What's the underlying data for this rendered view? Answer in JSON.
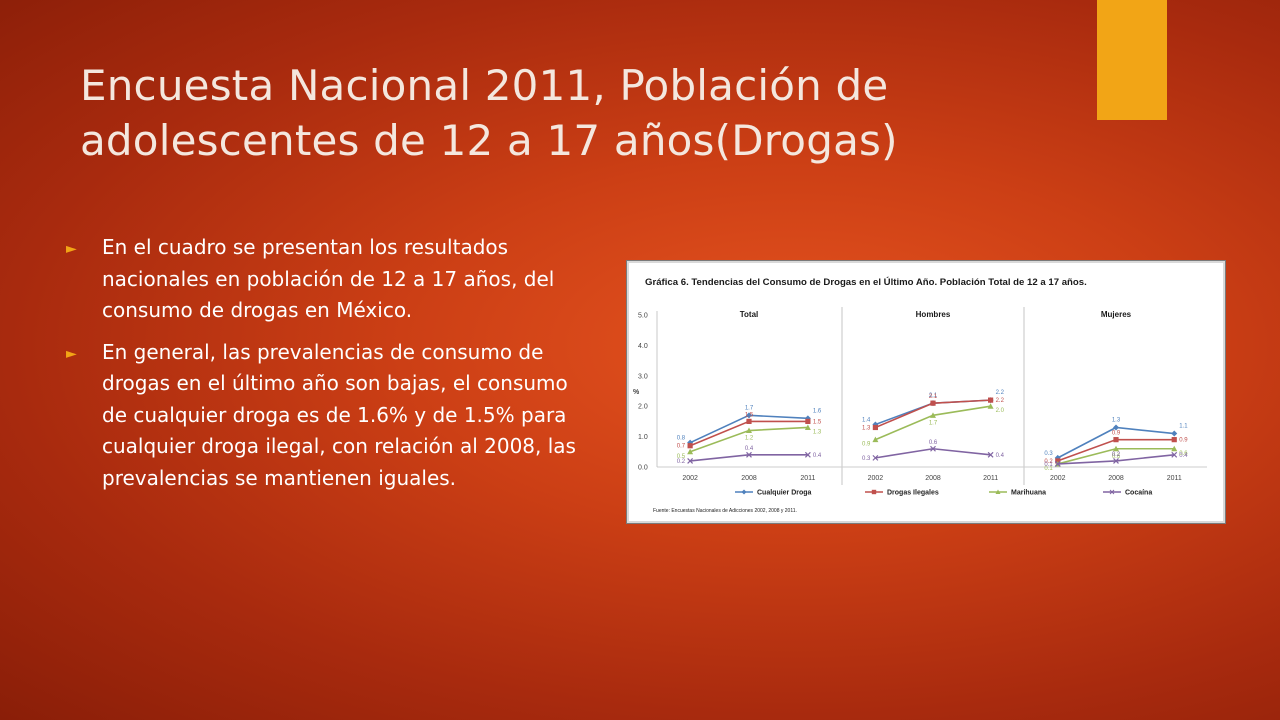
{
  "slide": {
    "title_line1": "Encuesta Nacional 2011, Población de",
    "title_line2": "adolescentes de 12 a 17 años(Drogas)",
    "bullets": [
      "En el cuadro se presentan los resultados nacionales en población de 12 a 17 años, del consumo de drogas en México.",
      "En general, las prevalencias de consumo de drogas en el último año son bajas, el consumo de cualquier droga es de 1.6% y de 1.5% para cualquier droga ilegal, con relación al 2008, las prevalencias se mantienen iguales."
    ],
    "accent_color": "#f2a516"
  },
  "chart_data": {
    "type": "line",
    "title": "Gráfica 6. Tendencias del Consumo de Drogas en el Último Año. Población Total de 12 a 17 años.",
    "ylabel": "%",
    "ylim": [
      0,
      5
    ],
    "yticks": [
      "0.0",
      "1.0",
      "2.0",
      "3.0",
      "4.0",
      "5.0"
    ],
    "categories": [
      "2002",
      "2008",
      "2011"
    ],
    "series_names": [
      "Cualquier Droga",
      "Drogas Ilegales",
      "Marihuana",
      "Cocaína"
    ],
    "series_colors": [
      "#4f81bd",
      "#c0504d",
      "#9bbb59",
      "#8064a2"
    ],
    "panels": [
      {
        "title": "Total",
        "series": [
          {
            "name": "Cualquier Droga",
            "values": [
              0.8,
              1.7,
              1.6
            ],
            "labels": [
              "0.8",
              "1.7",
              "1.6"
            ]
          },
          {
            "name": "Drogas Ilegales",
            "values": [
              0.7,
              1.5,
              1.5
            ],
            "labels": [
              "0.7",
              "1.5",
              "1.5"
            ]
          },
          {
            "name": "Marihuana",
            "values": [
              0.5,
              1.2,
              1.3
            ],
            "labels": [
              "0.5",
              "1.2",
              "1.3"
            ]
          },
          {
            "name": "Cocaína",
            "values": [
              0.2,
              0.4,
              0.4
            ],
            "labels": [
              "0.2",
              "0.4",
              "0.4"
            ]
          }
        ]
      },
      {
        "title": "Hombres",
        "series": [
          {
            "name": "Cualquier Droga",
            "values": [
              1.4,
              2.1,
              2.2
            ],
            "labels": [
              "1.4",
              "2.1",
              "2.2"
            ]
          },
          {
            "name": "Drogas Ilegales",
            "values": [
              1.3,
              2.1,
              2.2
            ],
            "labels": [
              "1.3",
              "2.1",
              "2.2"
            ]
          },
          {
            "name": "Marihuana",
            "values": [
              0.9,
              1.7,
              2.0
            ],
            "labels": [
              "0.9",
              "1.7",
              "2.0"
            ]
          },
          {
            "name": "Cocaína",
            "values": [
              0.3,
              0.6,
              0.4
            ],
            "labels": [
              "0.3",
              "0.6",
              "0.4"
            ]
          }
        ]
      },
      {
        "title": "Mujeres",
        "series": [
          {
            "name": "Cualquier Droga",
            "values": [
              0.3,
              1.3,
              1.1
            ],
            "labels": [
              "0.3",
              "1.3",
              "1.1"
            ]
          },
          {
            "name": "Drogas Ilegales",
            "values": [
              0.2,
              0.9,
              0.9
            ],
            "labels": [
              "0.2",
              "0.9",
              "0.9"
            ]
          },
          {
            "name": "Marihuana",
            "values": [
              0.1,
              0.6,
              0.6
            ],
            "labels": [
              "0.1",
              "0.6",
              "0.6"
            ]
          },
          {
            "name": "Cocaína",
            "values": [
              0.1,
              0.2,
              0.4
            ],
            "labels": [
              "0.1",
              "0.2",
              "0.4"
            ]
          }
        ]
      }
    ],
    "source": "Fuente: Encuestas Nacionales de Adicciones 2002, 2008 y 2011."
  }
}
